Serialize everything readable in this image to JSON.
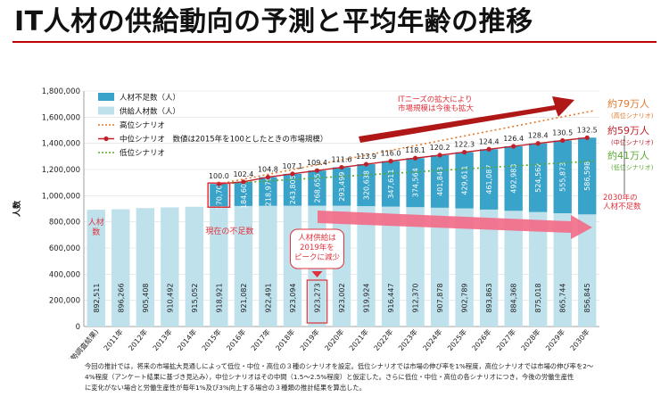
{
  "title": "IT人材の供給動向の予測と平均年齢の推移",
  "footnote": [
    "今回の推計では，将来の市場拡大見通しによって低位・中位・高位の３種のシナリオを設定。低位シナリオでは市場の伸び率を1%程度，高位シナリオでは市場の伸び率を2～",
    "4%程度（アンケート結果に基づき見込み），中位シナリオはその中間（1.5～2.5%程度）と仮定した。さらに低位・中位・高位の各シナリオにつき，今後の労働生産性",
    "に変化がない場合と労働生産性が毎年1%及び3%向上する場合の３種類の推計結果を算出した。"
  ],
  "chart_data": {
    "type": "bar",
    "ylabel": "人数",
    "ylim": [
      0,
      1800000
    ],
    "yticks": [
      "0",
      "200,000",
      "400,000",
      "600,000",
      "800,000",
      "1,000,000",
      "1,200,000",
      "1,400,000",
      "1,600,000",
      "1,800,000"
    ],
    "categories": [
      "2010年(国勢調査結果)",
      "2011年",
      "2012年",
      "2013年",
      "2014年",
      "2015年",
      "2016年",
      "2017年",
      "2018年",
      "2019年",
      "2020年",
      "2021年",
      "2022年",
      "2023年",
      "2024年",
      "2025年",
      "2026年",
      "2027年",
      "2028年",
      "2029年",
      "2030年"
    ],
    "supply": [
      892511,
      896266,
      905408,
      910492,
      915052,
      918921,
      921082,
      922491,
      923094,
      923273,
      923002,
      919924,
      916447,
      912370,
      907878,
      902789,
      893863,
      884368,
      875018,
      865744,
      856845
    ],
    "supply_labels": [
      "892,511",
      "896,266",
      "905,408",
      "910,492",
      "915,052",
      "918,921",
      "921,082",
      "922,491",
      "923,094",
      "923,273",
      "923,002",
      "919,924",
      "916,447",
      "912,370",
      "907,878",
      "902,789",
      "893,863",
      "884,368",
      "875,018",
      "865,744",
      "856,845"
    ],
    "shortage": [
      null,
      null,
      null,
      null,
      null,
      170700,
      184608,
      218976,
      243805,
      268655,
      293499,
      320638,
      347611,
      374564,
      401843,
      429611,
      461087,
      492983,
      524562,
      555873,
      586598
    ],
    "shortage_labels": [
      "",
      "",
      "",
      "",
      "",
      "170,700",
      "184,608",
      "218,976",
      "243,805",
      "268,655",
      "293,499",
      "320,638",
      "347,611",
      "374,564",
      "401,843",
      "429,611",
      "461,087",
      "492,983",
      "524,562",
      "555,873",
      "586,598"
    ],
    "index_labels": [
      "100.0",
      "102.4",
      "104.8",
      "107.1",
      "109.4",
      "111.6",
      "113.9",
      "116.0",
      "118.1",
      "120.2",
      "122.3",
      "124.4",
      "126.4",
      "128.4",
      "130.5",
      "132.5"
    ],
    "high_scenario_end": 1650000,
    "low_scenario_end": 1265000,
    "legend": [
      "人材不足数（人）",
      "供給人材数（人）",
      "高位シナリオ",
      "中位シナリオ　数値は2015年を100としたときの市場規模）",
      "低位シナリオ"
    ],
    "annotations": {
      "supply_label": "人材\n数",
      "current_shortage": "現在の不足数",
      "peak": "人材供給は\n2019年を\nピークに減少",
      "it_needs": "ITニーズの拡大により\n市場規模は今後も拡大",
      "high_total": "約79万人",
      "high_sub": "(高位シナリオ)",
      "mid_total": "約59万人",
      "mid_sub": "(中位シナリオ)",
      "low_total": "約41万人",
      "low_sub": "(低位シナリオ)",
      "shortage_2030": "2030年の\n人材不足数"
    },
    "colors": {
      "supply": "#bfe1ec",
      "shortage": "#3aa3c9",
      "high": "#e07a2c",
      "mid": "#c0202a",
      "low": "#5aa832",
      "red": "#e0303a"
    }
  }
}
